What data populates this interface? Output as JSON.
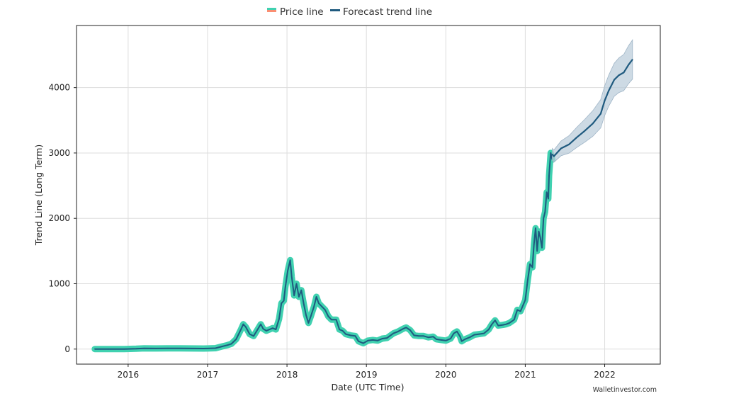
{
  "chart_data": {
    "type": "line",
    "title": "",
    "xlabel": "Date (UTC Time)",
    "ylabel": "Trend Line (Long Term)",
    "xlim": [
      2015.35,
      2022.7
    ],
    "ylim": [
      -230,
      4950
    ],
    "x_ticks": [
      2016,
      2017,
      2018,
      2019,
      2020,
      2021,
      2022
    ],
    "x_tick_labels": [
      "2016",
      "2017",
      "2018",
      "2019",
      "2020",
      "2021",
      "2022"
    ],
    "y_ticks": [
      0,
      1000,
      2000,
      3000,
      4000
    ],
    "y_tick_labels": [
      "0",
      "1000",
      "2000",
      "3000",
      "4000"
    ],
    "grid": true,
    "legend": {
      "position": "top-center"
    },
    "watermark": "Walletinvestor.com",
    "series": [
      {
        "name": "Price line",
        "kind": "price",
        "color": "#40d1b0",
        "legend_colors": [
          "#40d1b0",
          "#fa8e72"
        ],
        "points": [
          [
            2015.58,
            1
          ],
          [
            2015.75,
            1
          ],
          [
            2015.95,
            1
          ],
          [
            2016.1,
            5
          ],
          [
            2016.2,
            12
          ],
          [
            2016.35,
            10
          ],
          [
            2016.5,
            12
          ],
          [
            2016.65,
            11
          ],
          [
            2016.8,
            10
          ],
          [
            2016.95,
            8
          ],
          [
            2017.0,
            10
          ],
          [
            2017.1,
            14
          ],
          [
            2017.18,
            40
          ],
          [
            2017.25,
            60
          ],
          [
            2017.3,
            80
          ],
          [
            2017.36,
            150
          ],
          [
            2017.42,
            300
          ],
          [
            2017.45,
            380
          ],
          [
            2017.48,
            340
          ],
          [
            2017.53,
            230
          ],
          [
            2017.58,
            200
          ],
          [
            2017.63,
            300
          ],
          [
            2017.67,
            380
          ],
          [
            2017.7,
            310
          ],
          [
            2017.74,
            280
          ],
          [
            2017.78,
            300
          ],
          [
            2017.82,
            320
          ],
          [
            2017.86,
            300
          ],
          [
            2017.9,
            460
          ],
          [
            2017.93,
            700
          ],
          [
            2017.96,
            740
          ],
          [
            2017.98,
            950
          ],
          [
            2018.01,
            1200
          ],
          [
            2018.04,
            1360
          ],
          [
            2018.06,
            1100
          ],
          [
            2018.09,
            820
          ],
          [
            2018.12,
            1000
          ],
          [
            2018.15,
            800
          ],
          [
            2018.18,
            900
          ],
          [
            2018.21,
            700
          ],
          [
            2018.24,
            520
          ],
          [
            2018.27,
            400
          ],
          [
            2018.3,
            500
          ],
          [
            2018.34,
            650
          ],
          [
            2018.37,
            800
          ],
          [
            2018.4,
            700
          ],
          [
            2018.44,
            650
          ],
          [
            2018.48,
            600
          ],
          [
            2018.52,
            500
          ],
          [
            2018.56,
            450
          ],
          [
            2018.62,
            450
          ],
          [
            2018.66,
            300
          ],
          [
            2018.7,
            280
          ],
          [
            2018.74,
            230
          ],
          [
            2018.8,
            210
          ],
          [
            2018.86,
            200
          ],
          [
            2018.9,
            120
          ],
          [
            2018.96,
            90
          ],
          [
            2019.02,
            130
          ],
          [
            2019.08,
            140
          ],
          [
            2019.14,
            130
          ],
          [
            2019.2,
            160
          ],
          [
            2019.26,
            170
          ],
          [
            2019.34,
            240
          ],
          [
            2019.4,
            270
          ],
          [
            2019.46,
            310
          ],
          [
            2019.5,
            330
          ],
          [
            2019.55,
            290
          ],
          [
            2019.6,
            210
          ],
          [
            2019.66,
            200
          ],
          [
            2019.72,
            200
          ],
          [
            2019.78,
            180
          ],
          [
            2019.84,
            190
          ],
          [
            2019.88,
            150
          ],
          [
            2019.94,
            140
          ],
          [
            2020.0,
            130
          ],
          [
            2020.06,
            160
          ],
          [
            2020.1,
            240
          ],
          [
            2020.14,
            270
          ],
          [
            2020.18,
            190
          ],
          [
            2020.2,
            120
          ],
          [
            2020.24,
            150
          ],
          [
            2020.3,
            180
          ],
          [
            2020.36,
            220
          ],
          [
            2020.42,
            230
          ],
          [
            2020.48,
            240
          ],
          [
            2020.54,
            300
          ],
          [
            2020.58,
            380
          ],
          [
            2020.62,
            440
          ],
          [
            2020.66,
            360
          ],
          [
            2020.72,
            370
          ],
          [
            2020.76,
            380
          ],
          [
            2020.8,
            400
          ],
          [
            2020.86,
            450
          ],
          [
            2020.9,
            600
          ],
          [
            2020.94,
            580
          ],
          [
            2021.0,
            750
          ],
          [
            2021.03,
            1050
          ],
          [
            2021.06,
            1300
          ],
          [
            2021.09,
            1250
          ],
          [
            2021.11,
            1600
          ],
          [
            2021.13,
            1850
          ],
          [
            2021.15,
            1500
          ],
          [
            2021.17,
            1800
          ],
          [
            2021.19,
            1700
          ],
          [
            2021.21,
            1550
          ],
          [
            2021.23,
            2000
          ],
          [
            2021.25,
            2100
          ],
          [
            2021.27,
            2400
          ],
          [
            2021.29,
            2300
          ],
          [
            2021.3,
            2650
          ],
          [
            2021.32,
            3000
          ],
          [
            2021.34,
            2900
          ]
        ]
      },
      {
        "name": "Forecast trend line",
        "kind": "forecast",
        "color": "#1f5a7f",
        "band_color": "#b8cad8",
        "band_width": 300,
        "points": [
          [
            2021.34,
            2980
          ],
          [
            2021.36,
            2950
          ],
          [
            2021.45,
            3070
          ],
          [
            2021.55,
            3130
          ],
          [
            2021.65,
            3240
          ],
          [
            2021.75,
            3340
          ],
          [
            2021.85,
            3450
          ],
          [
            2021.95,
            3600
          ],
          [
            2022.0,
            3800
          ],
          [
            2022.05,
            3950
          ],
          [
            2022.12,
            4120
          ],
          [
            2022.18,
            4190
          ],
          [
            2022.24,
            4230
          ],
          [
            2022.3,
            4350
          ],
          [
            2022.35,
            4430
          ]
        ]
      }
    ]
  }
}
